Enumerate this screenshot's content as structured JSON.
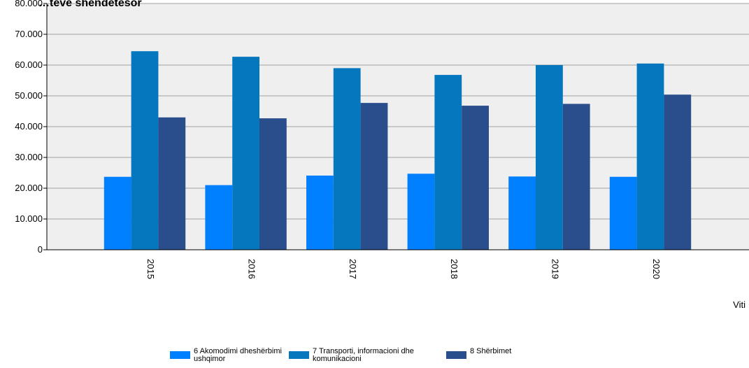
{
  "chart_data": {
    "type": "bar",
    "title": "…tëve shëndetësor",
    "xlabel": "Viti",
    "ylabel": "",
    "categories": [
      "2015",
      "2016",
      "2017",
      "2018",
      "2019",
      "2020"
    ],
    "ylim": [
      0,
      80000
    ],
    "yticks": [
      "0",
      "10.000",
      "20.000",
      "30.000",
      "40.000",
      "50.000",
      "60.000",
      "70.000",
      "80.000"
    ],
    "grid": true,
    "legend_position": "bottom",
    "series": [
      {
        "name": "6 Akomodimi dheshërbimi ushqimor",
        "color": "#0080ff",
        "values": [
          23700,
          21000,
          24100,
          24700,
          23800,
          23700
        ]
      },
      {
        "name": "7 Transporti, informacioni dhe komunikacioni",
        "color": "#0477bf",
        "values": [
          64500,
          62700,
          59000,
          56800,
          60000,
          60500
        ]
      },
      {
        "name": "8 Shërbimet",
        "color": "#2a4d8c",
        "values": [
          43000,
          42700,
          47700,
          46800,
          47400,
          50400
        ]
      }
    ]
  }
}
